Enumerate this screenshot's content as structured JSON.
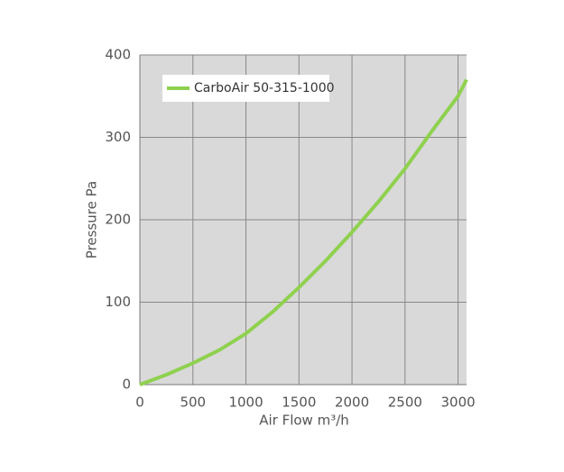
{
  "chart_data": {
    "type": "line",
    "x_label": "Air Flow m³/h",
    "y_label": "Pressure Pa",
    "x": [
      0,
      250,
      500,
      750,
      1000,
      1250,
      1500,
      1750,
      2000,
      2250,
      2500,
      2750,
      3000,
      3080
    ],
    "series": [
      {
        "name": "CarboAir 50-315-1000",
        "color": "#8fd14f",
        "values": [
          0,
          12,
          26,
          42,
          62,
          88,
          118,
          150,
          185,
          222,
          262,
          307,
          350,
          370
        ]
      }
    ],
    "xlim": [
      0,
      3080
    ],
    "xticks": [
      0,
      500,
      1000,
      1500,
      2000,
      2500,
      3000
    ],
    "ylim": [
      0,
      400
    ],
    "yticks": [
      0,
      100,
      200,
      300,
      400
    ],
    "grid": true,
    "legend": "upper left"
  }
}
